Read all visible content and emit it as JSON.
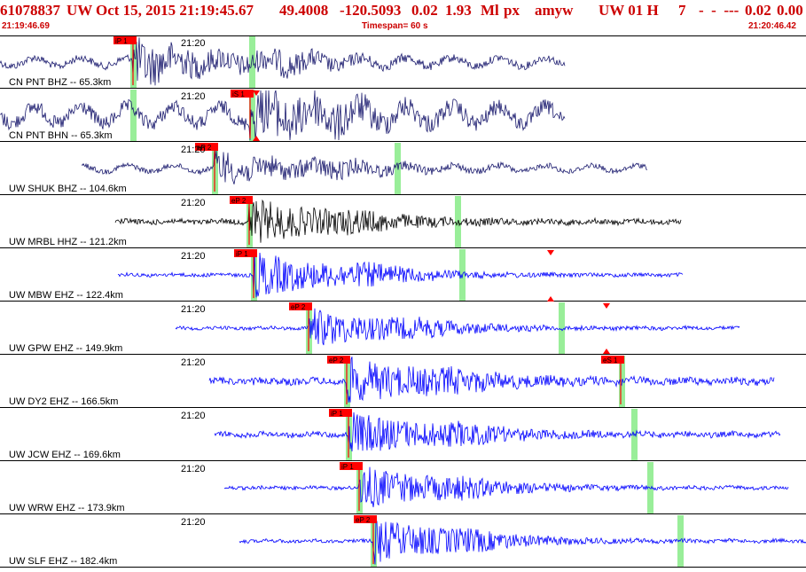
{
  "header": {
    "event_id": "61078837",
    "network": "UW",
    "datetime": "Oct 15, 2015 21:19:45.67",
    "lat": "49.4008",
    "lon": "-120.5093",
    "depth": "0.02",
    "magnitude": "1.93",
    "mag_type": "Ml",
    "event_type": "px",
    "analyst": "amyw",
    "source": "UW 01 H",
    "count": "7",
    "flags": "-  -  ---",
    "quality": "0.02",
    "rms": "0.00"
  },
  "subheader": {
    "start_time": "21:19:46.69",
    "timespan": "Timespan=  60 s",
    "end_time": "21:20:46.42"
  },
  "colors": {
    "header_text": "#cc0000",
    "pick_flag": "#ff0000",
    "pick_window": "#99ee99",
    "trace_navy": "#1a1a6e",
    "trace_black": "#000000",
    "trace_blue": "#0000ff",
    "divider": "#000000"
  },
  "traces": [
    {
      "label": "CN PNT BHZ -- 65.3km",
      "time_label": "21:20",
      "pick": "iP 1",
      "color": "navy",
      "markers": []
    },
    {
      "label": "CN PNT BHN -- 65.3km",
      "time_label": "21:20",
      "pick": "iS 1",
      "color": "navy",
      "markers": [
        "down-triangle",
        "up-triangle"
      ]
    },
    {
      "label": "UW SHUK BHZ -- 104.6km",
      "time_label": "21:20",
      "pick": "eP 2",
      "color": "navy",
      "markers": []
    },
    {
      "label": "UW MRBL HHZ -- 121.2km",
      "time_label": "21:20",
      "pick": "eP 2",
      "color": "black",
      "markers": []
    },
    {
      "label": "UW MBW EHZ -- 122.4km",
      "time_label": "21:20",
      "pick": "iP 1",
      "color": "blue",
      "markers": [
        "down-triangle"
      ]
    },
    {
      "label": "UW GPW EHZ -- 149.9km",
      "time_label": "21:20",
      "pick": "eP 2",
      "color": "blue",
      "markers": [
        "up-triangle",
        "down-triangle"
      ]
    },
    {
      "label": "UW DY2 EHZ -- 166.5km",
      "time_label": "21:20",
      "pick": "eP 2",
      "pick2": "eS 1",
      "color": "blue",
      "markers": [
        "up-triangle"
      ]
    },
    {
      "label": "UW JCW EHZ -- 169.6km",
      "time_label": "21:20",
      "pick": "iP 1",
      "color": "blue",
      "markers": []
    },
    {
      "label": "UW WRW EHZ -- 173.9km",
      "time_label": "21:20",
      "pick": "iP 1",
      "color": "blue",
      "markers": []
    },
    {
      "label": "UW SLF EHZ -- 182.4km",
      "time_label": "21:20",
      "pick": "eP 2",
      "color": "blue",
      "markers": []
    }
  ]
}
